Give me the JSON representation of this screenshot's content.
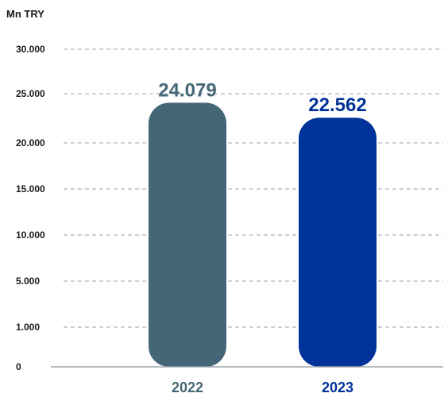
{
  "chart_data": {
    "type": "bar",
    "ylabel": "Mn TRY",
    "categories": [
      "2022",
      "2023"
    ],
    "values": [
      24079,
      22562
    ],
    "value_labels": [
      "24.079",
      "22.562"
    ],
    "bar_colors": [
      "#456676",
      "#003399"
    ],
    "y_ticks": [
      {
        "value": 0,
        "label": "0"
      },
      {
        "value": 1000,
        "label": "1.000"
      },
      {
        "value": 5000,
        "label": "5.000"
      },
      {
        "value": 10000,
        "label": "10.000"
      },
      {
        "value": 15000,
        "label": "15.000"
      },
      {
        "value": 20000,
        "label": "20.000"
      },
      {
        "value": 25000,
        "label": "25.000"
      },
      {
        "value": 30000,
        "label": "30.000"
      }
    ],
    "ylim": [
      0,
      30000
    ],
    "grid": true,
    "legend": "none"
  }
}
